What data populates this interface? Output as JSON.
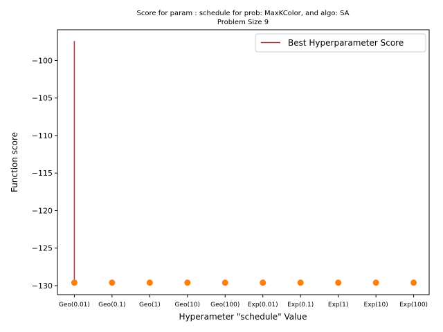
{
  "chart_data": {
    "type": "scatter",
    "title_line1": "Score for param : schedule for prob: MaxKColor, and algo: SA",
    "title_line2": "Problem Size 9",
    "xlabel": "Hyperameter \"schedule\" Value",
    "ylabel": "Function score",
    "categories": [
      "Geo(0.01)",
      "Geo(0.1)",
      "Geo(1)",
      "Geo(10)",
      "Geo(100)",
      "Exp(0.01)",
      "Exp(0.1)",
      "Exp(1)",
      "Exp(10)",
      "Exp(100)"
    ],
    "values": [
      -129.6,
      -129.6,
      -129.6,
      -129.6,
      -129.6,
      -129.6,
      -129.6,
      -129.6,
      -129.6,
      -129.6
    ],
    "point_color": "#ff7f0e",
    "ylim": [
      -131.2,
      -95.9
    ],
    "yticks": [
      -100,
      -105,
      -110,
      -115,
      -120,
      -125,
      -130
    ],
    "best_line": {
      "name": "Best Hyperparameter Score",
      "category": "Geo(0.01)",
      "y_from": -129.6,
      "y_to": -97.4,
      "color": "#e41a1c"
    },
    "legend_position": "top-right",
    "grid": false
  }
}
